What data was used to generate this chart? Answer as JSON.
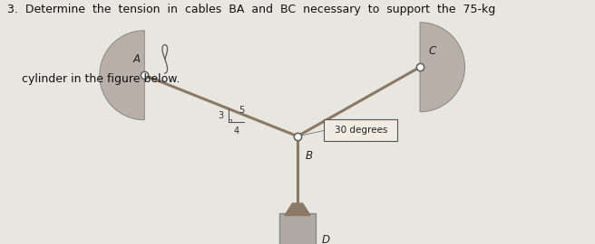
{
  "title_line1": "3.  Determine  the  tension  in  cables  BA  and  BC  necessary  to  support  the  75-kg",
  "title_line2": "    cylinder in the figure below.",
  "bg_color": "#d4d0cb",
  "page_bg": "#e8e6e0",
  "point_B": [
    0.5,
    0.38
  ],
  "point_A": [
    -0.25,
    0.68
  ],
  "point_C": [
    1.1,
    0.72
  ],
  "label_A": "A",
  "label_B": "B",
  "label_C": "C",
  "label_D": "D",
  "ratio_label_3": "3",
  "ratio_label_4": "4",
  "ratio_label_5": "5",
  "annotation_30deg": "30 degrees",
  "cable_color": "#8a7a65",
  "wall_color_face": "#b8b0a8",
  "wall_color_edge": "#888880",
  "cylinder_face": "#b0aaa4",
  "cylinder_edge": "#888880",
  "node_face": "#ffffff",
  "node_edge": "#666660"
}
